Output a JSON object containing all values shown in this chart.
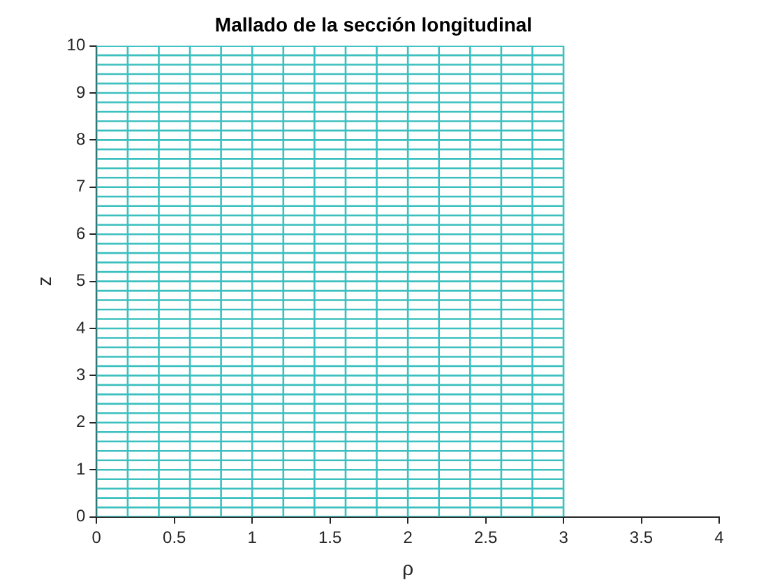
{
  "chart_data": {
    "type": "line",
    "title": "Mallado de la sección longitudinal",
    "xlabel": "ρ",
    "ylabel": "z",
    "xlim": [
      0,
      4
    ],
    "ylim": [
      0,
      10
    ],
    "xticks": [
      0,
      0.5,
      1,
      1.5,
      2,
      2.5,
      3,
      3.5,
      4
    ],
    "yticks": [
      0,
      1,
      2,
      3,
      4,
      5,
      6,
      7,
      8,
      9,
      10
    ],
    "grid": false,
    "legend": false,
    "marker": "none",
    "line_style": "solid",
    "series": [
      {
        "color": "#3cbfbf",
        "x": [
          0,
          0
        ],
        "values": [
          0,
          10
        ]
      },
      {
        "color": "#3cbfbf",
        "x": [
          0.2,
          0.2
        ],
        "values": [
          0,
          10
        ]
      },
      {
        "color": "#3cbfbf",
        "x": [
          0.4,
          0.4
        ],
        "values": [
          0,
          10
        ]
      },
      {
        "color": "#3cbfbf",
        "x": [
          0.6,
          0.6
        ],
        "values": [
          0,
          10
        ]
      },
      {
        "color": "#3cbfbf",
        "x": [
          0.8,
          0.8
        ],
        "values": [
          0,
          10
        ]
      },
      {
        "color": "#3cbfbf",
        "x": [
          1,
          1
        ],
        "values": [
          0,
          10
        ]
      },
      {
        "color": "#3cbfbf",
        "x": [
          1.2,
          1.2
        ],
        "values": [
          0,
          10
        ]
      },
      {
        "color": "#3cbfbf",
        "x": [
          1.4,
          1.4
        ],
        "values": [
          0,
          10
        ]
      },
      {
        "color": "#3cbfbf",
        "x": [
          1.6,
          1.6
        ],
        "values": [
          0,
          10
        ]
      },
      {
        "color": "#3cbfbf",
        "x": [
          1.8,
          1.8
        ],
        "values": [
          0,
          10
        ]
      },
      {
        "color": "#3cbfbf",
        "x": [
          2,
          2
        ],
        "values": [
          0,
          10
        ]
      },
      {
        "color": "#3cbfbf",
        "x": [
          2.2,
          2.2
        ],
        "values": [
          0,
          10
        ]
      },
      {
        "color": "#3cbfbf",
        "x": [
          2.4,
          2.4
        ],
        "values": [
          0,
          10
        ]
      },
      {
        "color": "#3cbfbf",
        "x": [
          2.6,
          2.6
        ],
        "values": [
          0,
          10
        ]
      },
      {
        "color": "#3cbfbf",
        "x": [
          2.8,
          2.8
        ],
        "values": [
          0,
          10
        ]
      },
      {
        "color": "#3cbfbf",
        "x": [
          3,
          3
        ],
        "values": [
          0,
          10
        ]
      },
      {
        "color": "#3cbfbf",
        "x": [
          0,
          3
        ],
        "values": [
          0,
          0
        ]
      },
      {
        "color": "#3cbfbf",
        "x": [
          0,
          3
        ],
        "values": [
          0.2,
          0.2
        ]
      },
      {
        "color": "#3cbfbf",
        "x": [
          0,
          3
        ],
        "values": [
          0.4,
          0.4
        ]
      },
      {
        "color": "#3cbfbf",
        "x": [
          0,
          3
        ],
        "values": [
          0.6,
          0.6
        ]
      },
      {
        "color": "#3cbfbf",
        "x": [
          0,
          3
        ],
        "values": [
          0.8,
          0.8
        ]
      },
      {
        "color": "#3cbfbf",
        "x": [
          0,
          3
        ],
        "values": [
          1,
          1
        ]
      },
      {
        "color": "#3cbfbf",
        "x": [
          0,
          3
        ],
        "values": [
          1.2,
          1.2
        ]
      },
      {
        "color": "#3cbfbf",
        "x": [
          0,
          3
        ],
        "values": [
          1.4,
          1.4
        ]
      },
      {
        "color": "#3cbfbf",
        "x": [
          0,
          3
        ],
        "values": [
          1.6,
          1.6
        ]
      },
      {
        "color": "#3cbfbf",
        "x": [
          0,
          3
        ],
        "values": [
          1.8,
          1.8
        ]
      },
      {
        "color": "#3cbfbf",
        "x": [
          0,
          3
        ],
        "values": [
          2,
          2
        ]
      },
      {
        "color": "#3cbfbf",
        "x": [
          0,
          3
        ],
        "values": [
          2.2,
          2.2
        ]
      },
      {
        "color": "#3cbfbf",
        "x": [
          0,
          3
        ],
        "values": [
          2.4,
          2.4
        ]
      },
      {
        "color": "#3cbfbf",
        "x": [
          0,
          3
        ],
        "values": [
          2.6,
          2.6
        ]
      },
      {
        "color": "#3cbfbf",
        "x": [
          0,
          3
        ],
        "values": [
          2.8,
          2.8
        ]
      },
      {
        "color": "#3cbfbf",
        "x": [
          0,
          3
        ],
        "values": [
          3,
          3
        ]
      },
      {
        "color": "#3cbfbf",
        "x": [
          0,
          3
        ],
        "values": [
          3.2,
          3.2
        ]
      },
      {
        "color": "#3cbfbf",
        "x": [
          0,
          3
        ],
        "values": [
          3.4,
          3.4
        ]
      },
      {
        "color": "#3cbfbf",
        "x": [
          0,
          3
        ],
        "values": [
          3.6,
          3.6
        ]
      },
      {
        "color": "#3cbfbf",
        "x": [
          0,
          3
        ],
        "values": [
          3.8,
          3.8
        ]
      },
      {
        "color": "#3cbfbf",
        "x": [
          0,
          3
        ],
        "values": [
          4,
          4
        ]
      },
      {
        "color": "#3cbfbf",
        "x": [
          0,
          3
        ],
        "values": [
          4.2,
          4.2
        ]
      },
      {
        "color": "#3cbfbf",
        "x": [
          0,
          3
        ],
        "values": [
          4.4,
          4.4
        ]
      },
      {
        "color": "#3cbfbf",
        "x": [
          0,
          3
        ],
        "values": [
          4.6,
          4.6
        ]
      },
      {
        "color": "#3cbfbf",
        "x": [
          0,
          3
        ],
        "values": [
          4.8,
          4.8
        ]
      },
      {
        "color": "#3cbfbf",
        "x": [
          0,
          3
        ],
        "values": [
          5,
          5
        ]
      },
      {
        "color": "#3cbfbf",
        "x": [
          0,
          3
        ],
        "values": [
          5.2,
          5.2
        ]
      },
      {
        "color": "#3cbfbf",
        "x": [
          0,
          3
        ],
        "values": [
          5.4,
          5.4
        ]
      },
      {
        "color": "#3cbfbf",
        "x": [
          0,
          3
        ],
        "values": [
          5.6,
          5.6
        ]
      },
      {
        "color": "#3cbfbf",
        "x": [
          0,
          3
        ],
        "values": [
          5.8,
          5.8
        ]
      },
      {
        "color": "#3cbfbf",
        "x": [
          0,
          3
        ],
        "values": [
          6,
          6
        ]
      },
      {
        "color": "#3cbfbf",
        "x": [
          0,
          3
        ],
        "values": [
          6.2,
          6.2
        ]
      },
      {
        "color": "#3cbfbf",
        "x": [
          0,
          3
        ],
        "values": [
          6.4,
          6.4
        ]
      },
      {
        "color": "#3cbfbf",
        "x": [
          0,
          3
        ],
        "values": [
          6.6,
          6.6
        ]
      },
      {
        "color": "#3cbfbf",
        "x": [
          0,
          3
        ],
        "values": [
          6.8,
          6.8
        ]
      },
      {
        "color": "#3cbfbf",
        "x": [
          0,
          3
        ],
        "values": [
          7,
          7
        ]
      },
      {
        "color": "#3cbfbf",
        "x": [
          0,
          3
        ],
        "values": [
          7.2,
          7.2
        ]
      },
      {
        "color": "#3cbfbf",
        "x": [
          0,
          3
        ],
        "values": [
          7.4,
          7.4
        ]
      },
      {
        "color": "#3cbfbf",
        "x": [
          0,
          3
        ],
        "values": [
          7.6,
          7.6
        ]
      },
      {
        "color": "#3cbfbf",
        "x": [
          0,
          3
        ],
        "values": [
          7.8,
          7.8
        ]
      },
      {
        "color": "#3cbfbf",
        "x": [
          0,
          3
        ],
        "values": [
          8,
          8
        ]
      },
      {
        "color": "#3cbfbf",
        "x": [
          0,
          3
        ],
        "values": [
          8.2,
          8.2
        ]
      },
      {
        "color": "#3cbfbf",
        "x": [
          0,
          3
        ],
        "values": [
          8.4,
          8.4
        ]
      },
      {
        "color": "#3cbfbf",
        "x": [
          0,
          3
        ],
        "values": [
          8.6,
          8.6
        ]
      },
      {
        "color": "#3cbfbf",
        "x": [
          0,
          3
        ],
        "values": [
          8.8,
          8.8
        ]
      },
      {
        "color": "#3cbfbf",
        "x": [
          0,
          3
        ],
        "values": [
          9,
          9
        ]
      },
      {
        "color": "#3cbfbf",
        "x": [
          0,
          3
        ],
        "values": [
          9.2,
          9.2
        ]
      },
      {
        "color": "#3cbfbf",
        "x": [
          0,
          3
        ],
        "values": [
          9.4,
          9.4
        ]
      },
      {
        "color": "#3cbfbf",
        "x": [
          0,
          3
        ],
        "values": [
          9.6,
          9.6
        ]
      },
      {
        "color": "#3cbfbf",
        "x": [
          0,
          3
        ],
        "values": [
          9.8,
          9.8
        ]
      },
      {
        "color": "#3cbfbf",
        "x": [
          0,
          3
        ],
        "values": [
          10,
          10
        ]
      }
    ]
  }
}
